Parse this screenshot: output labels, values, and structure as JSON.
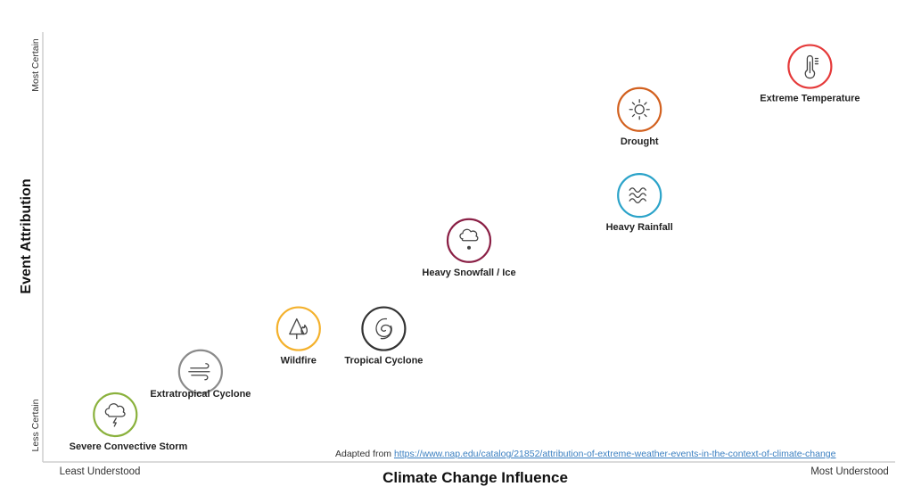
{
  "chart_data": {
    "type": "scatter",
    "title": "",
    "xlabel": "Climate Change Influence",
    "ylabel": "Event Attribution",
    "x_min_label": "Least Understood",
    "x_max_label": "Most Understood",
    "y_min_label": "Less Certain",
    "y_max_label": "Most Certain",
    "xlim": [
      0,
      100
    ],
    "ylim": [
      0,
      100
    ],
    "grid": false,
    "points": [
      {
        "label": "Severe Convective Storm",
        "x": 8.5,
        "y": 11,
        "color": "#8ab13c",
        "icon": "cloud-lightning-icon"
      },
      {
        "label": "Extratropical Cyclone",
        "x": 18.5,
        "y": 21,
        "color": "#8a8a8a",
        "icon": "wind-icon"
      },
      {
        "label": "Wildfire",
        "x": 30,
        "y": 31,
        "color": "#f4b12c",
        "icon": "tree-fire-icon"
      },
      {
        "label": "Tropical Cyclone",
        "x": 40,
        "y": 31,
        "color": "#333333",
        "icon": "hurricane-icon"
      },
      {
        "label": "Heavy Snowfall / Ice",
        "x": 50,
        "y": 51.5,
        "color": "#8a1f45",
        "icon": "cloud-snow-icon"
      },
      {
        "label": "Heavy Rainfall",
        "x": 70,
        "y": 62,
        "color": "#2ba3c9",
        "icon": "waves-icon"
      },
      {
        "label": "Drought",
        "x": 70,
        "y": 82,
        "color": "#d2601e",
        "icon": "sun-icon"
      },
      {
        "label": "Extreme Temperature",
        "x": 90,
        "y": 92,
        "color": "#e53a3a",
        "icon": "thermometer-icon"
      }
    ]
  },
  "credit": {
    "prefix": "Adapted from",
    "link_text": "https://www.nap.edu/catalog/21852/attribution-of-extreme-weather-events-in-the-context-of-climate-change"
  }
}
